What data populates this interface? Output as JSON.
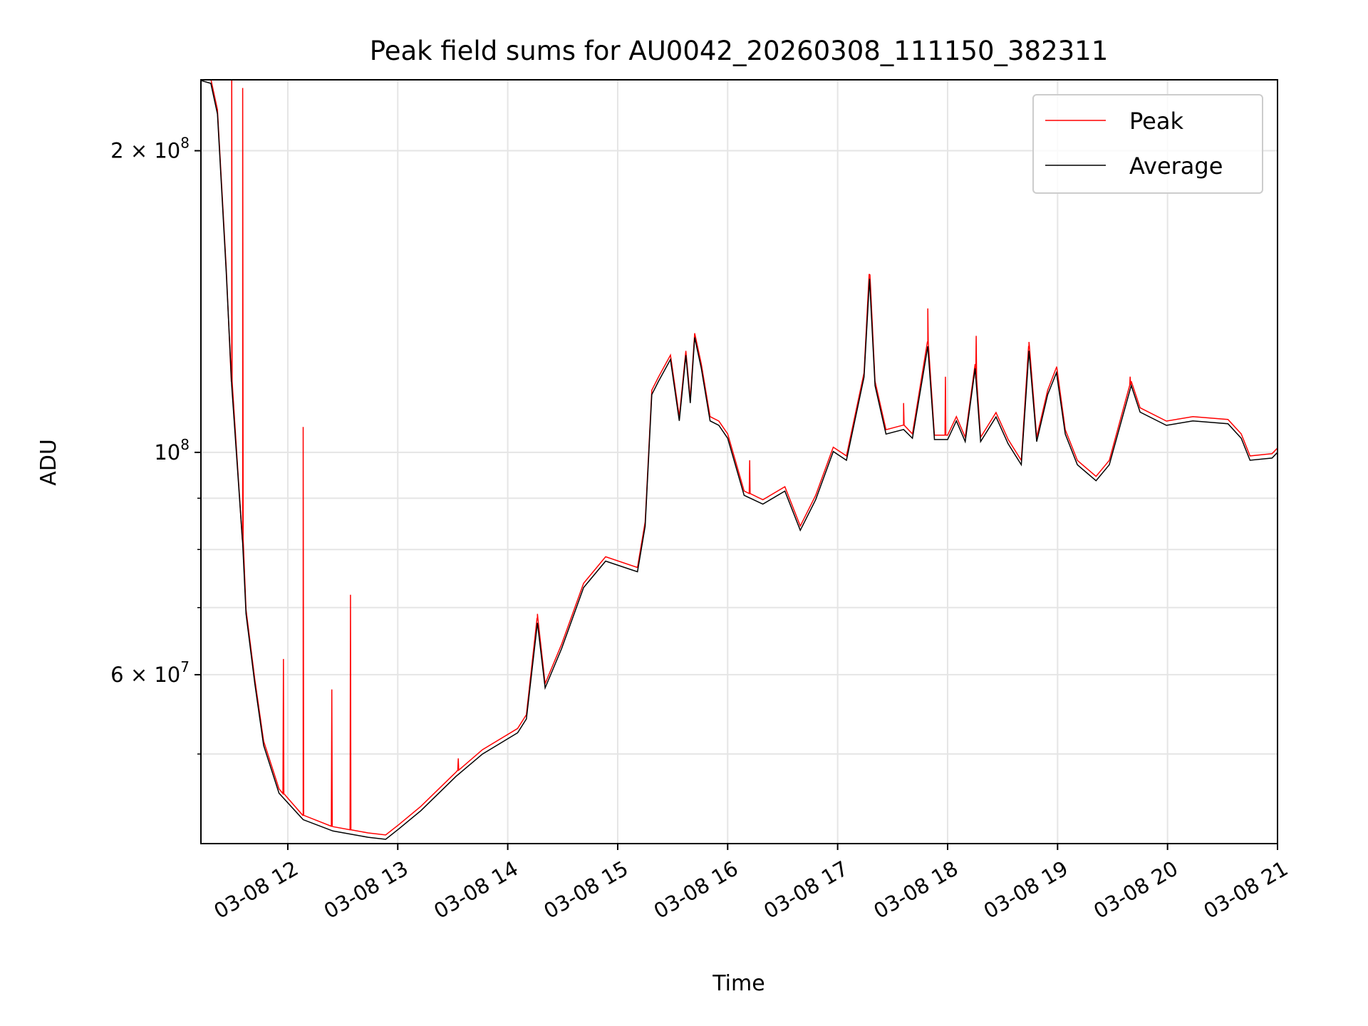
{
  "chart_data": {
    "type": "line",
    "title": "Peak field sums for AU0042_20260308_111150_382311",
    "xlabel": "Time",
    "ylabel": "ADU",
    "yscale": "log",
    "xlim_hours": [
      11.21,
      21.0
    ],
    "ylim": [
      40700000,
      235400000
    ],
    "grid": true,
    "legend_placement": "top-right",
    "x_ticks": [
      {
        "hour": 12,
        "label": "03-08 12"
      },
      {
        "hour": 13,
        "label": "03-08 13"
      },
      {
        "hour": 14,
        "label": "03-08 14"
      },
      {
        "hour": 15,
        "label": "03-08 15"
      },
      {
        "hour": 16,
        "label": "03-08 16"
      },
      {
        "hour": 17,
        "label": "03-08 17"
      },
      {
        "hour": 18,
        "label": "03-08 18"
      },
      {
        "hour": 19,
        "label": "03-08 19"
      },
      {
        "hour": 20,
        "label": "03-08 20"
      },
      {
        "hour": 21,
        "label": "03-08 21"
      }
    ],
    "y_ticks_major": [
      {
        "value": 200000000,
        "mantissa": "2 × ",
        "base": "10",
        "exp": "8"
      },
      {
        "value": 100000000,
        "mantissa": "",
        "base": "10",
        "exp": "8"
      },
      {
        "value": 60000000,
        "mantissa": "6 × ",
        "base": "10",
        "exp": "7"
      }
    ],
    "y_ticks_minor": [
      50000000,
      70000000,
      80000000,
      90000000
    ],
    "series": [
      {
        "name": "Peak",
        "color": "#ff0000",
        "spikes": [
          [
            11.49,
            260000000
          ],
          [
            11.59,
            231000000
          ],
          [
            11.96,
            62200000
          ],
          [
            12.14,
            106000000
          ],
          [
            12.4,
            58000000
          ],
          [
            12.57,
            72100000
          ],
          [
            13.55,
            49500000
          ],
          [
            14.27,
            69000000
          ],
          [
            16.2,
            98200000
          ],
          [
            17.29,
            150000000
          ],
          [
            17.6,
            112000000
          ],
          [
            17.82,
            139200000
          ],
          [
            17.98,
            119000000
          ],
          [
            18.26,
            130700000
          ],
          [
            18.74,
            128900000
          ],
          [
            18.99,
            121800000
          ],
          [
            19.66,
            119000000
          ]
        ]
      },
      {
        "name": "Average",
        "color": "#000000",
        "points": [
          [
            11.21,
            235000000
          ],
          [
            11.3,
            233500000
          ],
          [
            11.36,
            217600000
          ],
          [
            11.44,
            151400000
          ],
          [
            11.49,
            116600000
          ],
          [
            11.59,
            81100000
          ],
          [
            11.62,
            69000000
          ],
          [
            11.7,
            58800000
          ],
          [
            11.78,
            51000000
          ],
          [
            11.92,
            45700000
          ],
          [
            12.14,
            43000000
          ],
          [
            12.41,
            41900000
          ],
          [
            12.73,
            41300000
          ],
          [
            12.89,
            41100000
          ],
          [
            13.01,
            42100000
          ],
          [
            13.21,
            43900000
          ],
          [
            13.53,
            47500000
          ],
          [
            13.77,
            50000000
          ],
          [
            14.09,
            52500000
          ],
          [
            14.17,
            54200000
          ],
          [
            14.27,
            67600000
          ],
          [
            14.34,
            58200000
          ],
          [
            14.49,
            63700000
          ],
          [
            14.69,
            73300000
          ],
          [
            14.89,
            77900000
          ],
          [
            15.18,
            76000000
          ],
          [
            15.25,
            84400000
          ],
          [
            15.31,
            114200000
          ],
          [
            15.37,
            117700000
          ],
          [
            15.48,
            123800000
          ],
          [
            15.56,
            107500000
          ],
          [
            15.62,
            125000000
          ],
          [
            15.66,
            112000000
          ],
          [
            15.7,
            130200000
          ],
          [
            15.76,
            121300000
          ],
          [
            15.84,
            107500000
          ],
          [
            15.92,
            106400000
          ],
          [
            16.0,
            103300000
          ],
          [
            16.15,
            90600000
          ],
          [
            16.32,
            88800000
          ],
          [
            16.52,
            91500000
          ],
          [
            16.66,
            83600000
          ],
          [
            16.8,
            89700000
          ],
          [
            16.96,
            100200000
          ],
          [
            17.08,
            98200000
          ],
          [
            17.24,
            118900000
          ],
          [
            17.29,
            149000000
          ],
          [
            17.34,
            116600000
          ],
          [
            17.44,
            104300000
          ],
          [
            17.6,
            105400000
          ],
          [
            17.68,
            103300000
          ],
          [
            17.82,
            127600000
          ],
          [
            17.88,
            103000000
          ],
          [
            18.0,
            103000000
          ],
          [
            18.08,
            107500000
          ],
          [
            18.16,
            102500000
          ],
          [
            18.25,
            121300000
          ],
          [
            18.3,
            102500000
          ],
          [
            18.44,
            108500000
          ],
          [
            18.55,
            102000000
          ],
          [
            18.67,
            97200000
          ],
          [
            18.74,
            126300000
          ],
          [
            18.81,
            102500000
          ],
          [
            18.91,
            114200000
          ],
          [
            18.99,
            120100000
          ],
          [
            19.07,
            104300000
          ],
          [
            19.18,
            97200000
          ],
          [
            19.35,
            93700000
          ],
          [
            19.47,
            97200000
          ],
          [
            19.67,
            116600000
          ],
          [
            19.75,
            109700000
          ],
          [
            19.99,
            106400000
          ],
          [
            20.23,
            107500000
          ],
          [
            20.55,
            106800000
          ],
          [
            20.67,
            103300000
          ],
          [
            20.75,
            98200000
          ],
          [
            20.95,
            98700000
          ],
          [
            21.0,
            100000000
          ]
        ]
      }
    ]
  }
}
